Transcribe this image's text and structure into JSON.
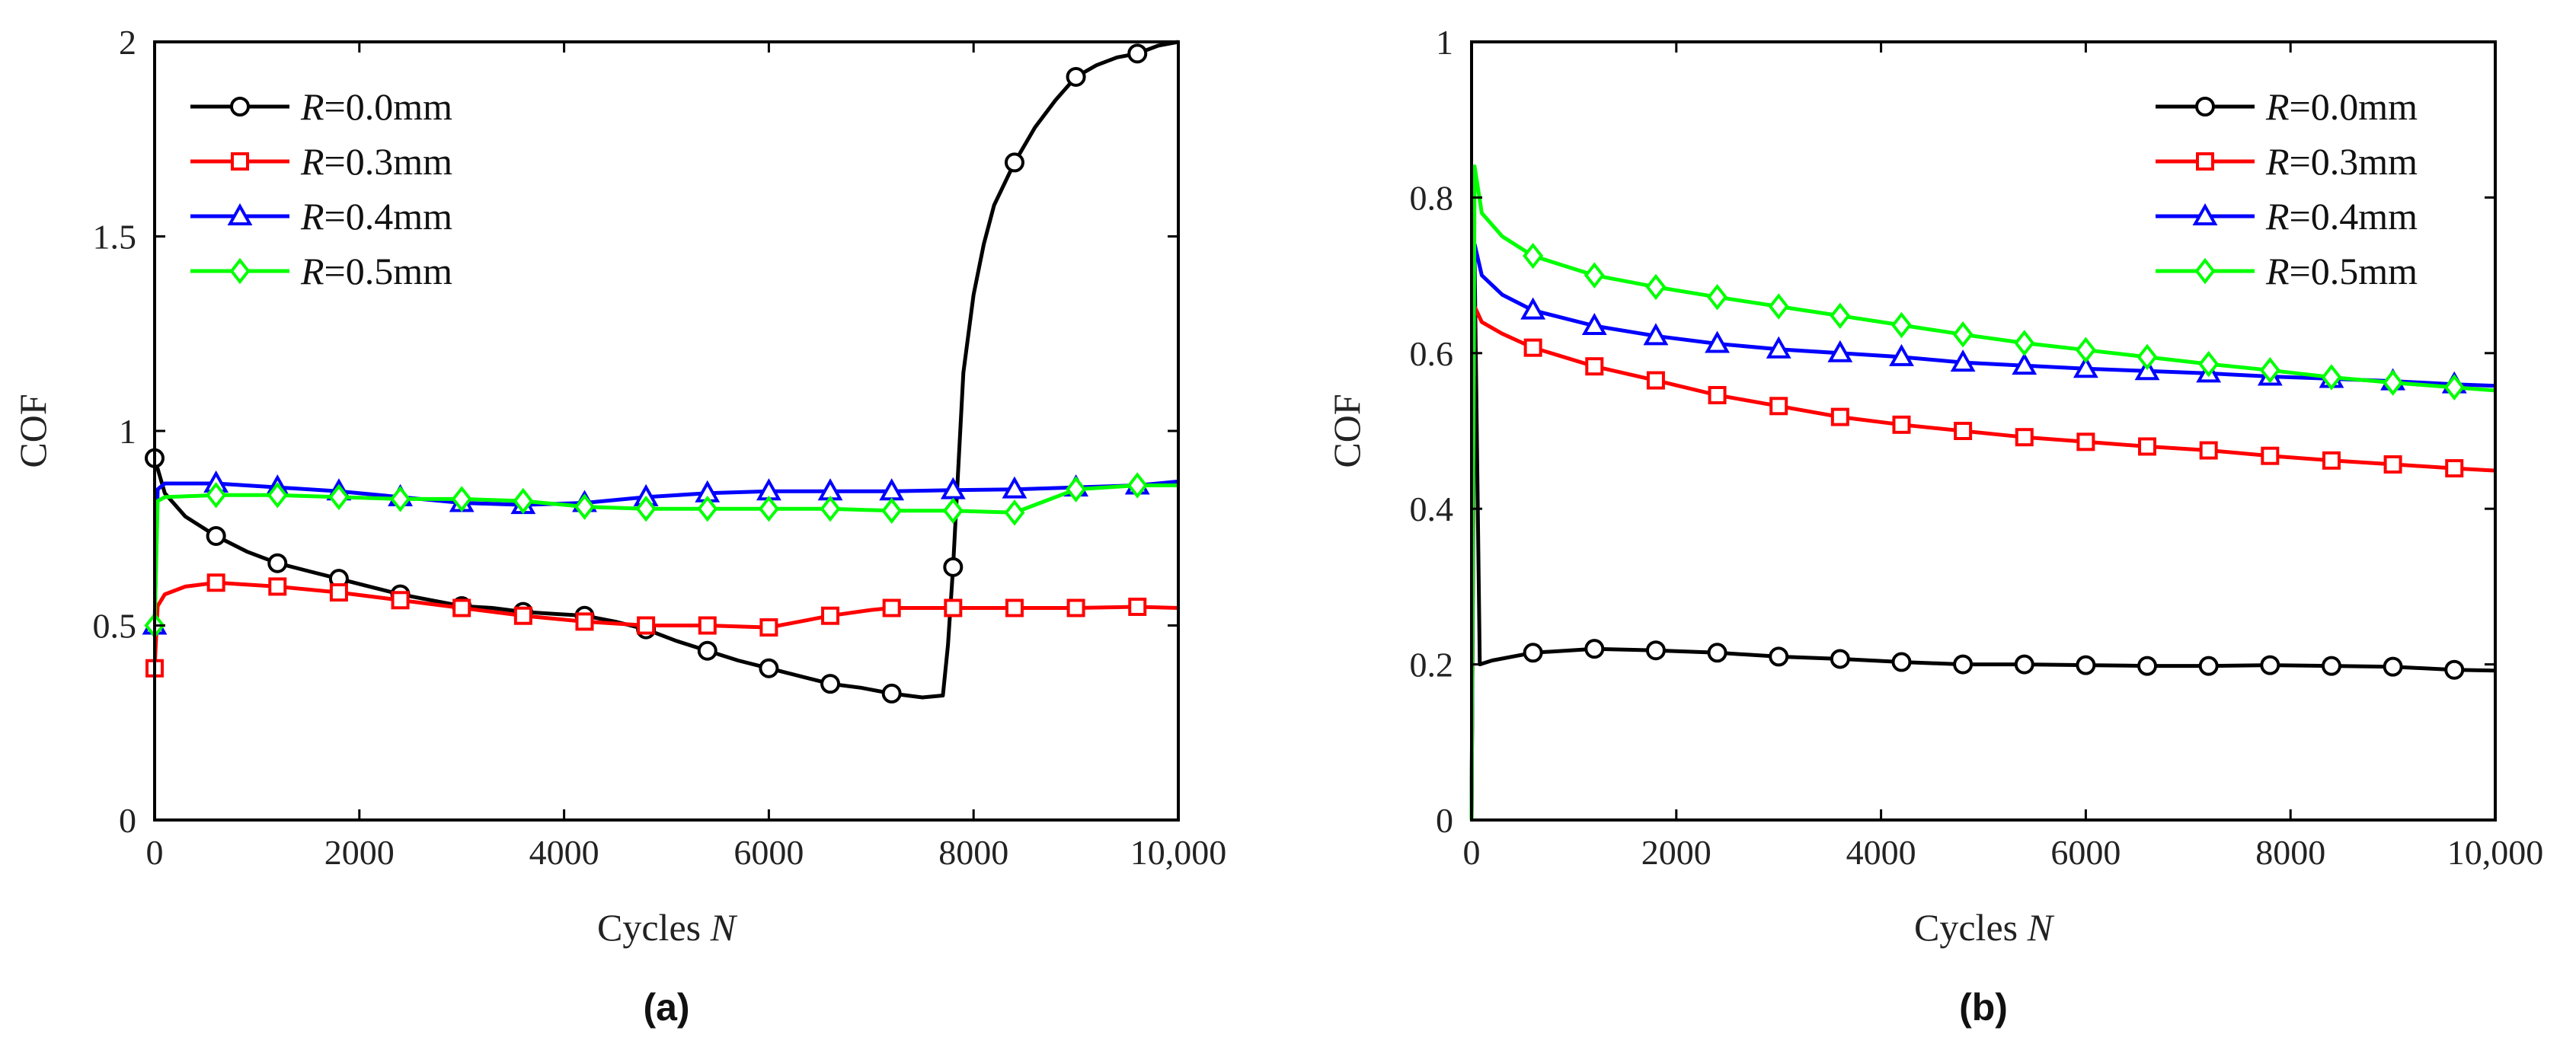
{
  "chart_data": [
    {
      "type": "line",
      "panel": "(a)",
      "xlabel": "Cycles",
      "xlabel_var": "N",
      "ylabel": "COF",
      "xlim": [
        0,
        10000
      ],
      "ylim": [
        0,
        2
      ],
      "xticks": [
        0,
        2000,
        4000,
        6000,
        8000,
        10000
      ],
      "xtick_labels": [
        "0",
        "2000",
        "4000",
        "6000",
        "8000",
        "10,000"
      ],
      "yticks": [
        0,
        0.5,
        1,
        1.5,
        2
      ],
      "ytick_labels": [
        "0",
        "0.5",
        "1",
        "1.5",
        "2"
      ],
      "legend_position": "top-left",
      "series": [
        {
          "name": "R=0.0mm",
          "var": "R",
          "label": "=0.0mm",
          "color": "#000000",
          "marker": "circle",
          "x": [
            0,
            100,
            300,
            600,
            900,
            1200,
            1500,
            1800,
            2100,
            2400,
            2700,
            3000,
            3300,
            3600,
            3900,
            4200,
            4500,
            4800,
            5100,
            5400,
            5700,
            6000,
            6300,
            6600,
            6900,
            7200,
            7500,
            7700,
            7750,
            7800,
            7850,
            7900,
            8000,
            8100,
            8200,
            8400,
            8600,
            8800,
            9000,
            9200,
            9400,
            9600,
            9800,
            10000
          ],
          "y": [
            0.93,
            0.84,
            0.78,
            0.73,
            0.69,
            0.66,
            0.64,
            0.62,
            0.6,
            0.58,
            0.565,
            0.55,
            0.545,
            0.535,
            0.53,
            0.525,
            0.51,
            0.49,
            0.46,
            0.435,
            0.41,
            0.39,
            0.37,
            0.35,
            0.34,
            0.325,
            0.315,
            0.32,
            0.45,
            0.65,
            0.9,
            1.15,
            1.35,
            1.48,
            1.58,
            1.69,
            1.78,
            1.85,
            1.91,
            1.94,
            1.96,
            1.97,
            1.99,
            2.0
          ],
          "marker_x": [
            0,
            600,
            1200,
            1800,
            2400,
            3000,
            3600,
            4200,
            4800,
            5400,
            6000,
            6600,
            7200,
            7800,
            8400,
            9000,
            9600
          ]
        },
        {
          "name": "R=0.3mm",
          "var": "R",
          "label": "=0.3mm",
          "color": "#ff0000",
          "marker": "square",
          "x": [
            0,
            30,
            100,
            300,
            600,
            1200,
            1800,
            2400,
            3000,
            3600,
            4200,
            4800,
            5400,
            6000,
            6300,
            6600,
            7000,
            7200,
            7800,
            8400,
            9000,
            9600,
            10000
          ],
          "y": [
            0.39,
            0.55,
            0.58,
            0.6,
            0.61,
            0.6,
            0.585,
            0.565,
            0.545,
            0.525,
            0.51,
            0.5,
            0.5,
            0.495,
            0.51,
            0.525,
            0.54,
            0.545,
            0.545,
            0.545,
            0.545,
            0.548,
            0.545
          ],
          "marker_x": [
            0,
            600,
            1200,
            1800,
            2400,
            3000,
            3600,
            4200,
            4800,
            5400,
            6000,
            6600,
            7200,
            7800,
            8400,
            9000,
            9600
          ]
        },
        {
          "name": "R=0.4mm",
          "var": "R",
          "label": "=0.4mm",
          "color": "#0000ff",
          "marker": "triangle",
          "x": [
            0,
            30,
            100,
            600,
            1200,
            1800,
            2400,
            3000,
            3600,
            4200,
            4800,
            5400,
            6000,
            6600,
            7200,
            7800,
            8400,
            9000,
            9600,
            10000
          ],
          "y": [
            0.5,
            0.85,
            0.865,
            0.865,
            0.855,
            0.845,
            0.83,
            0.815,
            0.81,
            0.815,
            0.83,
            0.84,
            0.845,
            0.845,
            0.845,
            0.848,
            0.85,
            0.855,
            0.86,
            0.87
          ],
          "marker_x": [
            0,
            600,
            1200,
            1800,
            2400,
            3000,
            3600,
            4200,
            4800,
            5400,
            6000,
            6600,
            7200,
            7800,
            8400,
            9000,
            9600
          ]
        },
        {
          "name": "R=0.5mm",
          "var": "R",
          "label": "=0.5mm",
          "color": "#00ff00",
          "marker": "diamond",
          "x": [
            0,
            30,
            100,
            600,
            1200,
            1800,
            2400,
            3000,
            3600,
            4200,
            4800,
            5400,
            6000,
            6600,
            7200,
            7800,
            8400,
            8700,
            9000,
            9600,
            10000
          ],
          "y": [
            0.5,
            0.82,
            0.83,
            0.835,
            0.835,
            0.83,
            0.825,
            0.825,
            0.82,
            0.805,
            0.8,
            0.8,
            0.8,
            0.8,
            0.795,
            0.795,
            0.79,
            0.82,
            0.85,
            0.86,
            0.86
          ],
          "marker_x": [
            0,
            600,
            1200,
            1800,
            2400,
            3000,
            3600,
            4200,
            4800,
            5400,
            6000,
            6600,
            7200,
            7800,
            8400,
            9000,
            9600
          ]
        }
      ]
    },
    {
      "type": "line",
      "panel": "(b)",
      "xlabel": "Cycles",
      "xlabel_var": "N",
      "ylabel": "COF",
      "xlim": [
        0,
        10000
      ],
      "ylim": [
        0,
        1
      ],
      "xticks": [
        0,
        2000,
        4000,
        6000,
        8000,
        10000
      ],
      "xtick_labels": [
        "0",
        "2000",
        "4000",
        "6000",
        "8000",
        "10,000"
      ],
      "yticks": [
        0,
        0.2,
        0.4,
        0.6,
        0.8,
        1
      ],
      "ytick_labels": [
        "0",
        "0.2",
        "0.4",
        "0.6",
        "0.8",
        "1"
      ],
      "legend_position": "top-right",
      "series": [
        {
          "name": "R=0.0mm",
          "var": "R",
          "label": "=0.0mm",
          "color": "#000000",
          "marker": "circle",
          "x": [
            0,
            30,
            80,
            200,
            600,
            1200,
            1800,
            2400,
            3000,
            3600,
            4200,
            4800,
            5400,
            6000,
            6600,
            7200,
            7800,
            8400,
            9000,
            9600,
            10000
          ],
          "y": [
            0.0,
            0.72,
            0.2,
            0.205,
            0.215,
            0.22,
            0.218,
            0.215,
            0.21,
            0.207,
            0.203,
            0.2,
            0.2,
            0.199,
            0.198,
            0.198,
            0.199,
            0.198,
            0.197,
            0.193,
            0.192
          ],
          "marker_x": [
            600,
            1200,
            1800,
            2400,
            3000,
            3600,
            4200,
            4800,
            5400,
            6000,
            6600,
            7200,
            7800,
            8400,
            9000,
            9600
          ]
        },
        {
          "name": "R=0.3mm",
          "var": "R",
          "label": "=0.3mm",
          "color": "#ff0000",
          "marker": "square",
          "x": [
            0,
            30,
            100,
            300,
            600,
            1200,
            1800,
            2400,
            3000,
            3600,
            4200,
            4800,
            5400,
            6000,
            6600,
            7200,
            7800,
            8400,
            9000,
            9600,
            10000
          ],
          "y": [
            0.0,
            0.66,
            0.64,
            0.625,
            0.607,
            0.583,
            0.565,
            0.546,
            0.532,
            0.518,
            0.508,
            0.5,
            0.492,
            0.486,
            0.48,
            0.475,
            0.468,
            0.462,
            0.457,
            0.452,
            0.449
          ],
          "marker_x": [
            600,
            1200,
            1800,
            2400,
            3000,
            3600,
            4200,
            4800,
            5400,
            6000,
            6600,
            7200,
            7800,
            8400,
            9000,
            9600
          ]
        },
        {
          "name": "R=0.4mm",
          "var": "R",
          "label": "=0.4mm",
          "color": "#0000ff",
          "marker": "triangle",
          "x": [
            0,
            30,
            100,
            300,
            600,
            1200,
            1800,
            2400,
            3000,
            3600,
            4200,
            4800,
            5400,
            6000,
            6600,
            7200,
            7800,
            8400,
            9000,
            9600,
            10000
          ],
          "y": [
            0.0,
            0.74,
            0.7,
            0.675,
            0.655,
            0.635,
            0.622,
            0.612,
            0.605,
            0.6,
            0.595,
            0.588,
            0.584,
            0.58,
            0.577,
            0.574,
            0.57,
            0.567,
            0.564,
            0.56,
            0.558
          ],
          "marker_x": [
            600,
            1200,
            1800,
            2400,
            3000,
            3600,
            4200,
            4800,
            5400,
            6000,
            6600,
            7200,
            7800,
            8400,
            9000,
            9600
          ]
        },
        {
          "name": "R=0.5mm",
          "var": "R",
          "label": "=0.5mm",
          "color": "#00ff00",
          "marker": "diamond",
          "x": [
            0,
            30,
            100,
            300,
            600,
            1200,
            1800,
            2400,
            3000,
            3600,
            4200,
            4800,
            5400,
            6000,
            6600,
            7200,
            7800,
            8400,
            9000,
            9600,
            10000
          ],
          "y": [
            0.0,
            0.84,
            0.78,
            0.75,
            0.725,
            0.7,
            0.685,
            0.672,
            0.66,
            0.648,
            0.636,
            0.624,
            0.613,
            0.604,
            0.595,
            0.586,
            0.578,
            0.569,
            0.562,
            0.556,
            0.552
          ],
          "marker_x": [
            600,
            1200,
            1800,
            2400,
            3000,
            3600,
            4200,
            4800,
            5400,
            6000,
            6600,
            7200,
            7800,
            8400,
            9000,
            9600
          ]
        }
      ]
    }
  ]
}
